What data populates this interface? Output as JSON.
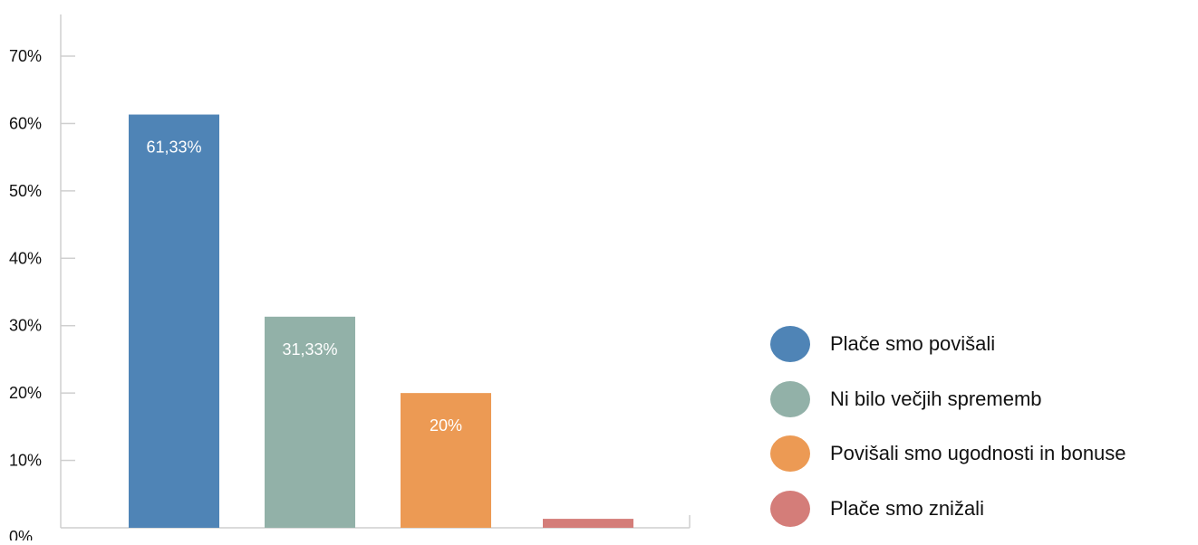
{
  "chart_data": {
    "type": "bar",
    "categories": [
      "Plače smo povišali",
      "Ni bilo večjih sprememb",
      "Povišali smo ugodnosti in bonuse",
      "Plače smo znižali"
    ],
    "values": [
      61.33,
      31.33,
      20,
      1.33
    ],
    "data_labels": [
      "61,33%",
      "31,33%",
      "20%",
      ""
    ],
    "colors": [
      "#4f84b6",
      "#92b1a8",
      "#ec9a54",
      "#d47d79"
    ],
    "ylim": [
      0,
      70
    ],
    "yticks": [
      0,
      10,
      20,
      30,
      40,
      50,
      60,
      70
    ],
    "ytick_labels": [
      "0%",
      "10%",
      "20%",
      "30%",
      "40%",
      "50%",
      "60%",
      "70%"
    ],
    "legend_position": "right",
    "grid": false,
    "title": "",
    "xlabel": "",
    "ylabel": ""
  }
}
